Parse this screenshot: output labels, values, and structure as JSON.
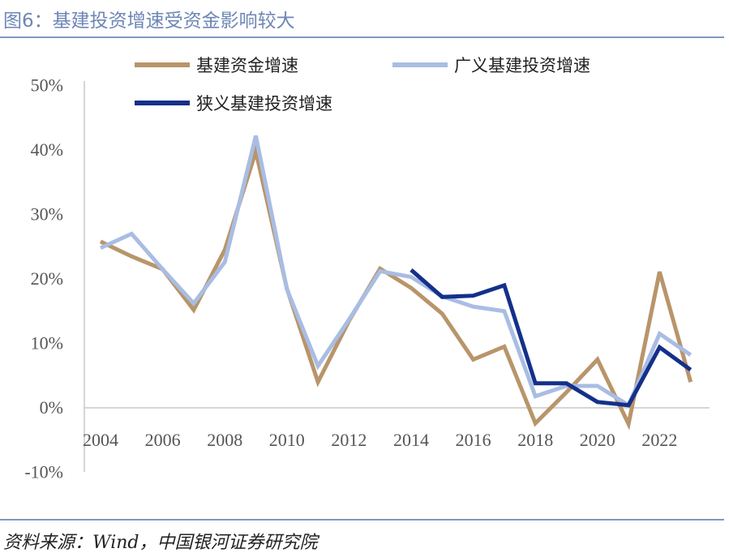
{
  "figure_title": "图6：基建投资增速受资金影响较大",
  "source_note": "资料来源：Wind，中国银河证券研究院",
  "chart_data": {
    "type": "line",
    "x": [
      2004,
      2005,
      2006,
      2007,
      2008,
      2009,
      2010,
      2011,
      2012,
      2013,
      2014,
      2015,
      2016,
      2017,
      2018,
      2019,
      2020,
      2021,
      2022,
      2023
    ],
    "x_ticks": [
      "2004",
      "2006",
      "2008",
      "2010",
      "2012",
      "2014",
      "2016",
      "2018",
      "2020",
      "2022"
    ],
    "y_ticks": [
      "50%",
      "40%",
      "30%",
      "20%",
      "10%",
      "0%",
      "-10%"
    ],
    "ylim": [
      -10,
      50
    ],
    "grid": false,
    "legend_position": "top",
    "series": [
      {
        "name": "基建资金增速",
        "color": "#b8956a",
        "values": [
          25.8,
          23.5,
          21.5,
          15.2,
          24.5,
          39.8,
          18.5,
          4.0,
          13.5,
          21.6,
          18.6,
          14.6,
          7.5,
          9.5,
          -2.4,
          2.4,
          7.5,
          -2.5,
          21.1,
          4.0
        ]
      },
      {
        "name": "广义基建投资增速",
        "color": "#a9bde3",
        "values": [
          24.8,
          27.0,
          21.5,
          16.2,
          22.6,
          42.2,
          18.4,
          6.5,
          13.7,
          21.2,
          20.3,
          17.3,
          15.7,
          15.0,
          1.8,
          3.4,
          3.4,
          0.4,
          11.5,
          8.2
        ]
      },
      {
        "name": "狭义基建投资增速",
        "color": "#14308a",
        "values": [
          null,
          null,
          null,
          null,
          null,
          null,
          null,
          null,
          null,
          null,
          21.4,
          17.2,
          17.4,
          19.0,
          3.8,
          3.8,
          0.9,
          0.4,
          9.4,
          5.9
        ]
      }
    ]
  }
}
